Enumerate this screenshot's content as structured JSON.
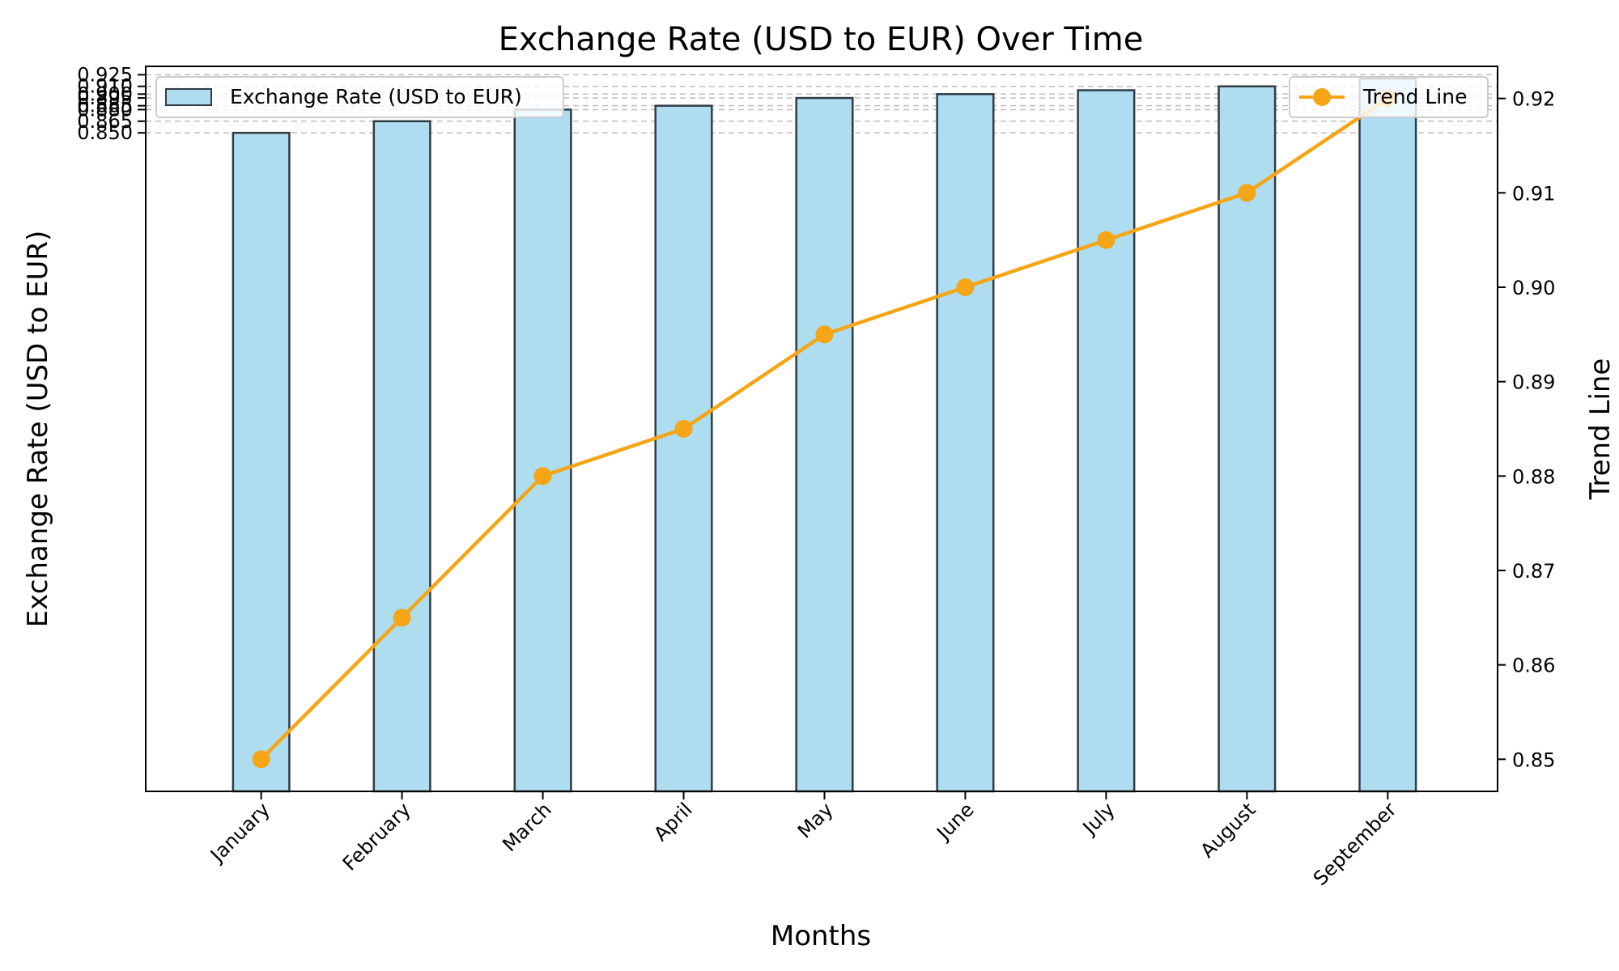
{
  "chart_data": {
    "type": "bar",
    "title": "Exchange Rate (USD to EUR) Over Time",
    "xlabel": "Months",
    "ylabel": "Exchange Rate (USD to EUR)",
    "y2label": "Trend Line",
    "categories": [
      "January",
      "February",
      "March",
      "April",
      "May",
      "June",
      "July",
      "August",
      "September"
    ],
    "series": [
      {
        "name": "Exchange Rate (USD to EUR)",
        "type": "bar",
        "axis": "left",
        "values": [
          0.85,
          0.865,
          0.88,
          0.885,
          0.895,
          0.9,
          0.905,
          0.91,
          0.92
        ],
        "color": "#ADDDEF",
        "edge_color": "#2F3B45"
      },
      {
        "name": "Trend Line",
        "type": "line",
        "axis": "right",
        "values": [
          0.85,
          0.865,
          0.88,
          0.885,
          0.895,
          0.9,
          0.905,
          0.91,
          0.92
        ],
        "color": "#F5A516",
        "marker": "circle"
      }
    ],
    "left_axis": {
      "ticks": [
        0.85,
        0.865,
        0.88,
        0.885,
        0.895,
        0.9,
        0.91,
        0.925
      ],
      "tick_labels": [
        "0.850",
        "0.865",
        "0.880",
        "0.885",
        "0.895",
        "0.900",
        "0.910",
        "0.925"
      ]
    },
    "right_axis": {
      "ylim": [
        0.8466,
        0.9234
      ],
      "ticks": [
        0.85,
        0.86,
        0.87,
        0.88,
        0.89,
        0.9,
        0.91,
        0.92
      ],
      "tick_labels": [
        "0.85",
        "0.86",
        "0.87",
        "0.88",
        "0.89",
        "0.90",
        "0.91",
        "0.92"
      ]
    },
    "grid": "horizontal-dashed",
    "legend": [
      {
        "label": "Exchange Rate (USD to EUR)",
        "placement": "top-left"
      },
      {
        "label": "Trend Line",
        "placement": "top-right"
      }
    ]
  }
}
